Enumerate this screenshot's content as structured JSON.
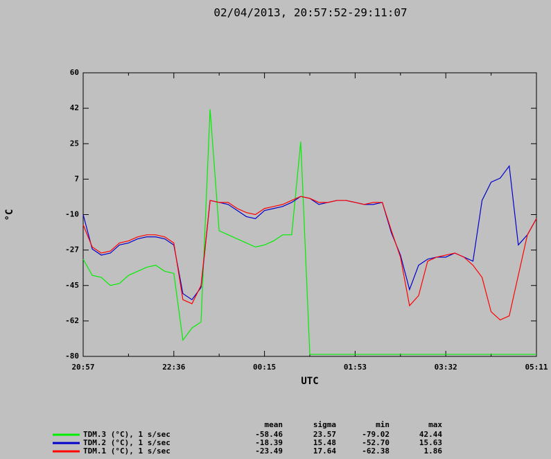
{
  "chart_data": {
    "type": "line",
    "title": "02/04/2013, 20:57:52-29:11:07",
    "x_label": "UTC",
    "y_label": "°C",
    "categories": [
      "20:57",
      null,
      null,
      null,
      null,
      null,
      null,
      null,
      null,
      null,
      "22:36",
      null,
      null,
      null,
      null,
      null,
      null,
      null,
      null,
      null,
      "00:15",
      null,
      null,
      null,
      null,
      null,
      null,
      null,
      null,
      null,
      "01:53",
      null,
      null,
      null,
      null,
      null,
      null,
      null,
      null,
      null,
      "03:32",
      null,
      null,
      null,
      null,
      null,
      null,
      null,
      null,
      null,
      "05:11"
    ],
    "ylim": [
      -80,
      60
    ],
    "yticks": [
      -80,
      {
        "value": -62.5,
        "label": "-62"
      },
      -45,
      {
        "value": -27.5,
        "label": "-27"
      },
      -10,
      {
        "value": 7.5,
        "label": "7"
      },
      25,
      {
        "value": 42.5,
        "label": "42"
      },
      60
    ],
    "series": [
      {
        "name": "TDM.3 (°C), 1 s/sec",
        "color": "#00ee00",
        "values": [
          -32,
          -40,
          -41,
          -45,
          -44,
          -40,
          -38,
          -36,
          -35,
          -38,
          -39,
          -72,
          -66,
          -63,
          42,
          -18,
          -20,
          -22,
          -24,
          -26,
          -25,
          -23,
          -20,
          -20,
          26,
          -79,
          -79,
          -79,
          -79,
          -79,
          -79,
          -79,
          -79,
          -79,
          -79,
          -79,
          -79,
          -79,
          -79,
          -79,
          -79,
          -79,
          -79,
          -79,
          -79,
          -79,
          -79,
          -79,
          -79,
          -79,
          -79
        ]
      },
      {
        "name": "TDM.2 (°C), 1 s/sec",
        "color": "#0000cc",
        "values": [
          -10,
          -27,
          -30,
          -29,
          -25,
          -24,
          -22,
          -21,
          -21,
          -22,
          -25,
          -49,
          -52,
          -46,
          -3,
          -4,
          -5,
          -8,
          -11,
          -12,
          -8,
          -7,
          -6,
          -4,
          -1,
          -2,
          -5,
          -4,
          -3,
          -3,
          -4,
          -5,
          -5,
          -4,
          -19,
          -30,
          -47,
          -35,
          -32,
          -31,
          -31,
          -29,
          -31,
          -33,
          -3,
          6,
          8,
          14,
          -25,
          -20,
          -12
        ]
      },
      {
        "name": "TDM.1 (°C), 1 s/sec",
        "color": "#ff0000",
        "values": [
          -15,
          -26,
          -29,
          -28,
          -24,
          -23,
          -21,
          -20,
          -20,
          -21,
          -24,
          -52,
          -54,
          -45,
          -3,
          -4,
          -4,
          -7,
          -9,
          -10,
          -7,
          -6,
          -5,
          -3,
          -1,
          -2,
          -4,
          -4,
          -3,
          -3,
          -4,
          -5,
          -4,
          -4,
          -18,
          -31,
          -55,
          -50,
          -33,
          -31,
          -30,
          -29,
          -31,
          -35,
          -41,
          -58,
          -62,
          -60,
          -40,
          -20,
          -12
        ]
      }
    ],
    "stats": {
      "header": [
        "mean",
        "sigma",
        "min",
        "max"
      ],
      "rows": [
        [
          "-58.46",
          "23.57",
          "-79.02",
          "42.44"
        ],
        [
          "-18.39",
          "15.48",
          "-52.70",
          "15.63"
        ],
        [
          "-23.49",
          "17.64",
          "-62.38",
          "1.86"
        ]
      ]
    }
  }
}
